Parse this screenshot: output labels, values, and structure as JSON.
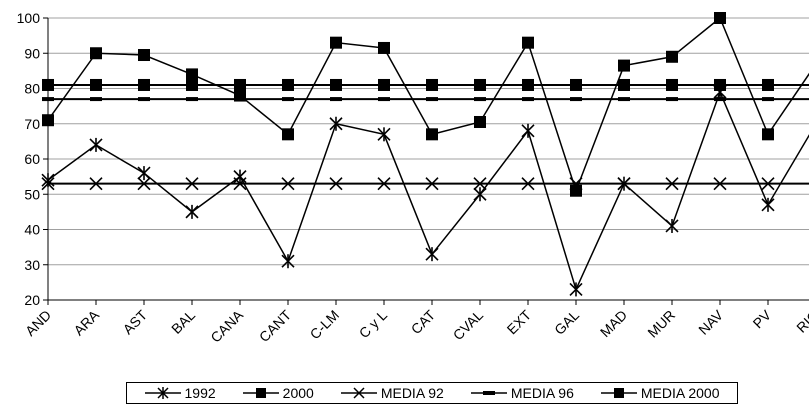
{
  "chart_data": {
    "type": "line",
    "categories": [
      "AND",
      "ARA",
      "AST",
      "BAL",
      "CANA",
      "CANT",
      "C-LM",
      "C y L",
      "CAT",
      "CVAL",
      "EXT",
      "GAL",
      "MAD",
      "MUR",
      "NAV",
      "PV",
      "RIO"
    ],
    "ylim": [
      20,
      100
    ],
    "yticks": [
      20,
      30,
      40,
      50,
      60,
      70,
      80,
      90,
      100
    ],
    "grid": true,
    "legend_position": "bottom",
    "series": [
      {
        "name": "1992",
        "marker": "star",
        "values": [
          54,
          64,
          56,
          45,
          55,
          31,
          70,
          67,
          33,
          50,
          68,
          23,
          53,
          41,
          79,
          47,
          70
        ]
      },
      {
        "name": "2000",
        "marker": "square",
        "values": [
          71,
          90,
          89.5,
          84,
          78,
          67,
          93,
          91.5,
          67,
          70.5,
          93,
          51,
          86.5,
          89,
          100,
          67,
          87
        ]
      },
      {
        "name": "MEDIA 92",
        "marker": "star",
        "values": [
          53,
          53,
          53,
          53,
          53,
          53,
          53,
          53,
          53,
          53,
          53,
          53,
          53,
          53,
          53,
          53,
          53
        ]
      },
      {
        "name": "MEDIA 96",
        "marker": "dash",
        "values": [
          77,
          77,
          77,
          77,
          77,
          77,
          77,
          77,
          77,
          77,
          77,
          77,
          77,
          77,
          77,
          77,
          77
        ]
      },
      {
        "name": "MEDIA 2000",
        "marker": "square",
        "values": [
          81,
          81,
          81,
          81,
          81,
          81,
          81,
          81,
          81,
          81,
          81,
          81,
          81,
          81,
          81,
          81,
          81
        ]
      }
    ],
    "colors": {
      "line": "#000000",
      "grid": "#a0a0a0",
      "background": "#ffffff"
    }
  }
}
